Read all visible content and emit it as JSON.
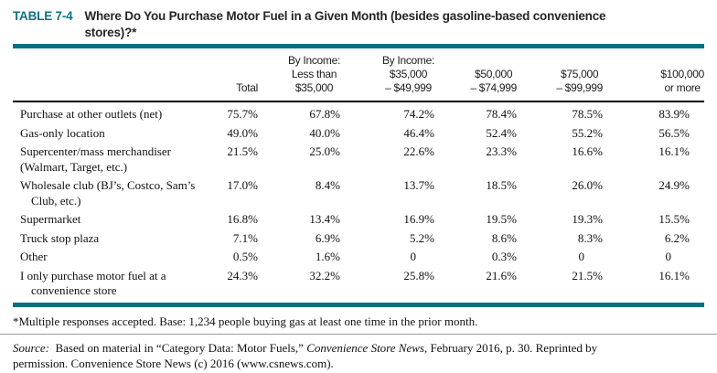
{
  "page": {
    "label": "TABLE 7-4",
    "title": "Where Do You Purchase Motor Fuel in a Given Month (besides gasoline-based convenience stores)?*"
  },
  "colors": {
    "accent_teal": "#0A7080",
    "label_teal": "#0E7383",
    "header_rule_black": "#000000",
    "hairline_gray": "#9D9D9D"
  },
  "table": {
    "columns": [
      "",
      "Total",
      "By Income:\nLess than\n$35,000",
      "By Income:\n$35,000\n– $49,999",
      "$50,000\n– $74,999",
      "$75,000\n– $99,999",
      "$100,000\nor more"
    ],
    "rows": [
      {
        "label_lines": [
          "Purchase at other outlets (net)"
        ],
        "hang_indent": false,
        "values": [
          "75.7%",
          "67.8%",
          "74.2%",
          "78.4%",
          "78.5%",
          "83.9%"
        ]
      },
      {
        "label_lines": [
          "Gas-only location"
        ],
        "hang_indent": false,
        "values": [
          "49.0%",
          "40.0%",
          "46.4%",
          "52.4%",
          "55.2%",
          "56.5%"
        ]
      },
      {
        "label_lines": [
          "Supercenter/mass merchandiser",
          "(Walmart, Target, etc.)"
        ],
        "hang_indent": false,
        "values": [
          "21.5%",
          "25.0%",
          "22.6%",
          "23.3%",
          "16.6%",
          "16.1%"
        ]
      },
      {
        "label_lines": [
          "Wholesale club (BJ’s, Costco, Sam’s",
          "Club, etc.)"
        ],
        "hang_indent": true,
        "values": [
          "17.0%",
          "8.4%",
          "13.7%",
          "18.5%",
          "26.0%",
          "24.9%"
        ]
      },
      {
        "label_lines": [
          "Supermarket"
        ],
        "hang_indent": false,
        "values": [
          "16.8%",
          "13.4%",
          "16.9%",
          "19.5%",
          "19.3%",
          "15.5%"
        ]
      },
      {
        "label_lines": [
          "Truck stop plaza"
        ],
        "hang_indent": false,
        "values": [
          "7.1%",
          "6.9%",
          "5.2%",
          "8.6%",
          "8.3%",
          "6.2%"
        ]
      },
      {
        "label_lines": [
          "Other"
        ],
        "hang_indent": false,
        "values": [
          "0.5%",
          "1.6%",
          "0",
          "0.3%",
          "0",
          "0"
        ]
      },
      {
        "label_lines": [
          "I only purchase motor fuel at a",
          "convenience store"
        ],
        "hang_indent": true,
        "values": [
          "24.3%",
          "32.2%",
          "25.8%",
          "21.6%",
          "21.5%",
          "16.1%"
        ]
      }
    ]
  },
  "footnote": "*Multiple responses accepted. Base: 1,234 people buying gas at least one time in the prior month.",
  "source": {
    "lines": [
      [
        {
          "text": "Source:",
          "italic": true
        },
        {
          "text": "  Based on material in “Category Data: Motor Fuels,” ",
          "italic": false
        },
        {
          "text": "Convenience Store News",
          "italic": true
        },
        {
          "text": ", February 2016, p. 30. Reprinted by",
          "italic": false
        }
      ],
      [
        {
          "text": "permission. Convenience Store News (c) 2016 (www.csnews.com).",
          "italic": false
        }
      ]
    ]
  }
}
